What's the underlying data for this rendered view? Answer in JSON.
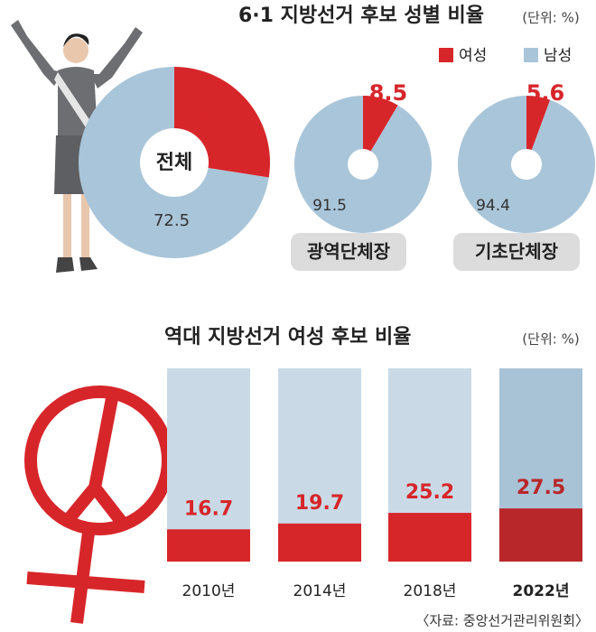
{
  "chart_data": [
    {
      "type": "pie",
      "title": "6·1 지방선거 후보 성별 비율",
      "unit": "(단위: %)",
      "categories": [
        "여성",
        "남성"
      ],
      "colors": [
        "#d7262a",
        "#a9c5d9"
      ],
      "pies": [
        {
          "name": "전체",
          "values": [
            27.5,
            72.5
          ]
        },
        {
          "name": "광역단체장",
          "values": [
            8.5,
            91.5
          ]
        },
        {
          "name": "기초단체장",
          "values": [
            5.6,
            94.4
          ]
        }
      ]
    },
    {
      "type": "bar",
      "title": "역대 지방선거 여성 후보 비율",
      "unit": "(단위: %)",
      "categories": [
        "2010년",
        "2014년",
        "2018년",
        "2022년"
      ],
      "values": [
        16.7,
        19.7,
        25.2,
        27.5
      ],
      "color": "#d7262a",
      "ylim": [
        0,
        100
      ],
      "source": "〈자료: 중앙선거관리위원회〉"
    }
  ]
}
